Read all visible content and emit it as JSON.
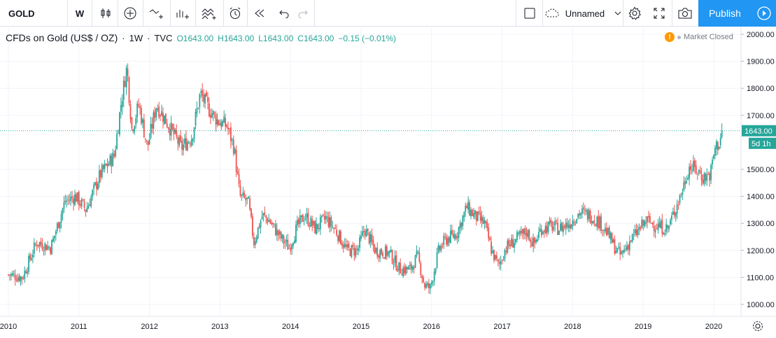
{
  "toolbar": {
    "symbol": "GOLD",
    "interval": "W",
    "layout_name": "Unnamed",
    "publish_label": "Publish",
    "icons": [
      "candles-icon",
      "add-indicator-icon",
      "compare-icon",
      "indicators-icon",
      "templates-icon",
      "alert-icon",
      "replay-icon",
      "undo-icon",
      "redo-icon",
      "fullscreen-toggle-icon",
      "cloud-icon",
      "chevron-down-icon",
      "settings-icon",
      "fullscreen-icon",
      "camera-icon",
      "play-icon"
    ]
  },
  "legend": {
    "title": "CFDs on Gold (US$ / OZ)",
    "interval": "1W",
    "source": "TVC",
    "open": "O1643.00",
    "high": "H1643.00",
    "low": "L1643.00",
    "close": "C1643.00",
    "change": "−0.15 (−0.01%)",
    "market_status": "Market Closed",
    "status_icon_label": "!"
  },
  "chart_data": {
    "type": "candlestick",
    "title": "CFDs on Gold (US$ / OZ)",
    "xlabel": "",
    "ylabel": "",
    "x_ticks": [
      "2010",
      "2011",
      "2012",
      "2013",
      "2014",
      "2015",
      "2016",
      "2017",
      "2018",
      "2019",
      "2020"
    ],
    "y_ticks": [
      "2000.00",
      "1900.00",
      "1800.00",
      "1700.00",
      "1500.00",
      "1400.00",
      "1300.00",
      "1200.00",
      "1100.00",
      "1000.00"
    ],
    "ylim": [
      960,
      2030
    ],
    "xlim": [
      2010.0,
      2020.45
    ],
    "last_price": 1643.0,
    "last_price_label": "1643.00",
    "countdown_label": "5d 1h",
    "approx_close_path": [
      [
        2010.0,
        1110
      ],
      [
        2010.2,
        1100
      ],
      [
        2010.4,
        1230
      ],
      [
        2010.6,
        1210
      ],
      [
        2010.8,
        1380
      ],
      [
        2010.95,
        1400
      ],
      [
        2011.1,
        1350
      ],
      [
        2011.3,
        1480
      ],
      [
        2011.5,
        1550
      ],
      [
        2011.6,
        1750
      ],
      [
        2011.68,
        1880
      ],
      [
        2011.75,
        1650
      ],
      [
        2011.85,
        1740
      ],
      [
        2011.97,
        1580
      ],
      [
        2012.1,
        1740
      ],
      [
        2012.3,
        1650
      ],
      [
        2012.45,
        1580
      ],
      [
        2012.6,
        1620
      ],
      [
        2012.72,
        1780
      ],
      [
        2012.85,
        1720
      ],
      [
        2012.97,
        1680
      ],
      [
        2013.1,
        1660
      ],
      [
        2013.2,
        1580
      ],
      [
        2013.28,
        1400
      ],
      [
        2013.4,
        1380
      ],
      [
        2013.48,
        1230
      ],
      [
        2013.6,
        1330
      ],
      [
        2013.7,
        1310
      ],
      [
        2013.85,
        1250
      ],
      [
        2013.98,
        1210
      ],
      [
        2014.1,
        1290
      ],
      [
        2014.2,
        1330
      ],
      [
        2014.35,
        1280
      ],
      [
        2014.5,
        1320
      ],
      [
        2014.65,
        1270
      ],
      [
        2014.8,
        1200
      ],
      [
        2014.95,
        1200
      ],
      [
        2015.05,
        1280
      ],
      [
        2015.2,
        1200
      ],
      [
        2015.4,
        1190
      ],
      [
        2015.55,
        1130
      ],
      [
        2015.7,
        1130
      ],
      [
        2015.8,
        1180
      ],
      [
        2015.9,
        1070
      ],
      [
        2015.98,
        1060
      ],
      [
        2016.1,
        1200
      ],
      [
        2016.2,
        1240
      ],
      [
        2016.35,
        1260
      ],
      [
        2016.5,
        1360
      ],
      [
        2016.6,
        1330
      ],
      [
        2016.75,
        1300
      ],
      [
        2016.85,
        1200
      ],
      [
        2016.95,
        1140
      ],
      [
        2017.05,
        1210
      ],
      [
        2017.2,
        1240
      ],
      [
        2017.35,
        1270
      ],
      [
        2017.45,
        1220
      ],
      [
        2017.55,
        1280
      ],
      [
        2017.7,
        1290
      ],
      [
        2017.8,
        1280
      ],
      [
        2017.95,
        1300
      ],
      [
        2018.1,
        1340
      ],
      [
        2018.25,
        1330
      ],
      [
        2018.4,
        1300
      ],
      [
        2018.5,
        1260
      ],
      [
        2018.6,
        1210
      ],
      [
        2018.68,
        1180
      ],
      [
        2018.8,
        1230
      ],
      [
        2018.95,
        1280
      ],
      [
        2019.05,
        1310
      ],
      [
        2019.2,
        1290
      ],
      [
        2019.35,
        1280
      ],
      [
        2019.45,
        1350
      ],
      [
        2019.55,
        1420
      ],
      [
        2019.65,
        1510
      ],
      [
        2019.75,
        1500
      ],
      [
        2019.85,
        1470
      ],
      [
        2019.95,
        1480
      ],
      [
        2020.02,
        1580
      ],
      [
        2020.08,
        1600
      ],
      [
        2020.12,
        1643
      ]
    ]
  }
}
